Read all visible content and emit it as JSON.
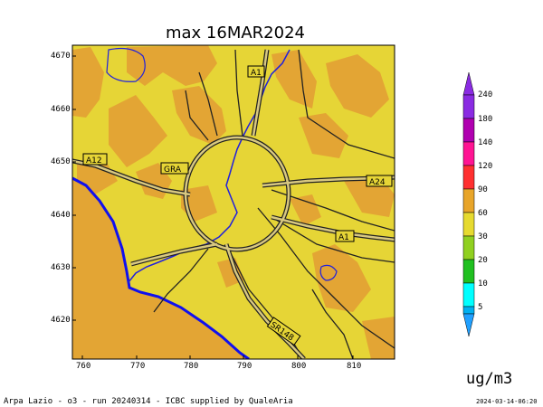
{
  "title": "max 16MAR2024",
  "y_ticks": [
    "4670",
    "4660",
    "4650",
    "4640",
    "4630",
    "4620"
  ],
  "x_ticks": [
    "760",
    "770",
    "780",
    "790",
    "800",
    "810"
  ],
  "colorbar": {
    "labels": [
      "240",
      "180",
      "140",
      "120",
      "90",
      "60",
      "30",
      "20",
      "10",
      "5"
    ],
    "colors": [
      "#8a2be2",
      "#b000b0",
      "#ff1493",
      "#ff3030",
      "#e8a52a",
      "#e6da30",
      "#90d020",
      "#20c020",
      "#00ffff",
      "#00b0f0",
      "#20a0ff"
    ],
    "unit": "ug/m3"
  },
  "roads": {
    "a1_top": "A1",
    "a12": "A12",
    "gra": "GRA",
    "a24": "A24",
    "a1_right": "A1",
    "sr148": "SR148"
  },
  "footer": "Arpa Lazio - o3 - run 20240314 - ICBC supplied by QualeAria",
  "stamp": "2024-03-14-06:20",
  "map_colors": {
    "yellow": "#e6d536",
    "orange": "#e3a534",
    "sea": "#e3a534",
    "coast": "#1010ee",
    "roads": "#222222"
  }
}
